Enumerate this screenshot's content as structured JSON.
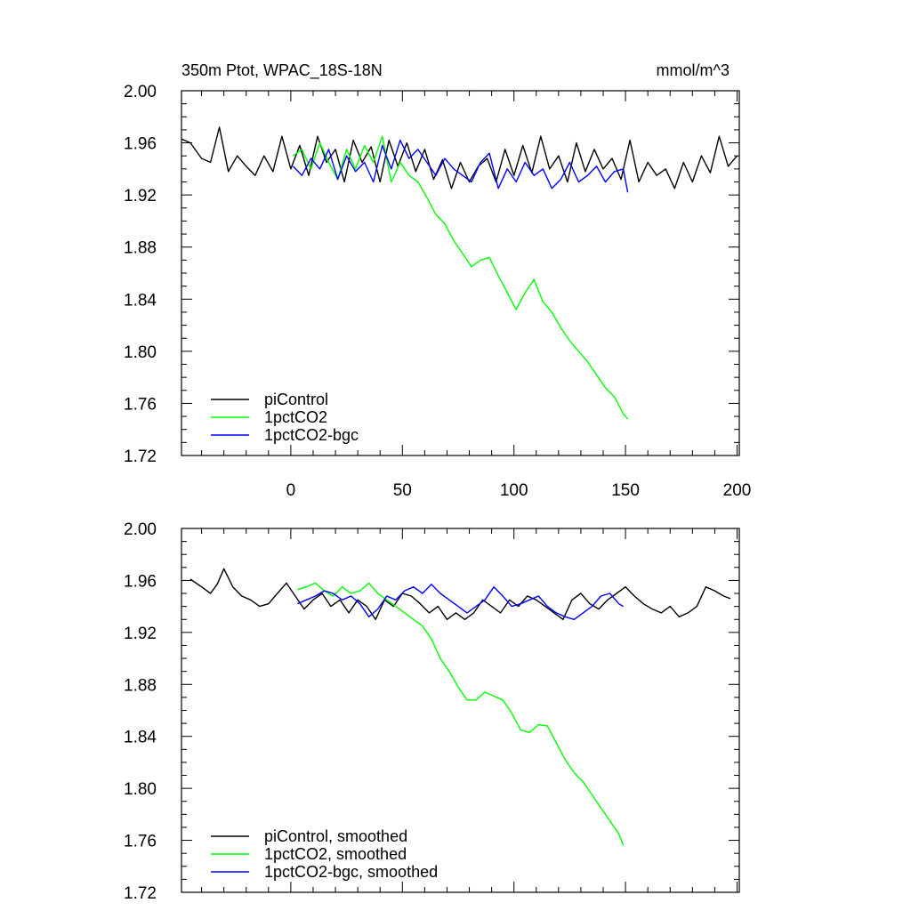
{
  "header": {
    "title": "350m Ptot, WPAC_18S-18N",
    "units": "mmol/m^3"
  },
  "colors": {
    "piControl": "#000000",
    "1pctCO2": "#00ff00",
    "1pctCO2-bgc": "#0000ff"
  },
  "chart_data": [
    {
      "type": "line",
      "title": "350m Ptot, WPAC_18S-18N",
      "units": "mmol/m^3",
      "xlim": [
        -49,
        201
      ],
      "ylim": [
        1.72,
        2.0
      ],
      "xticks": [
        0,
        50,
        100,
        150,
        200
      ],
      "xtick_labels": [
        "0",
        "50",
        "100",
        "150",
        "200"
      ],
      "yticks": [
        1.72,
        1.76,
        1.8,
        1.84,
        1.88,
        1.92,
        1.96,
        2.0
      ],
      "ytick_labels": [
        "1.72",
        "1.76",
        "1.80",
        "1.84",
        "1.88",
        "1.92",
        "1.96",
        "2.00"
      ],
      "grid": false,
      "legend_position": "bottom-left",
      "series": [
        {
          "name": "piControl",
          "color": "#000000",
          "x": [
            -49,
            -45,
            -40,
            -36,
            -32,
            -28,
            -24,
            -20,
            -16,
            -12,
            -8,
            -4,
            0,
            4,
            8,
            12,
            16,
            20,
            24,
            28,
            32,
            36,
            40,
            44,
            48,
            52,
            56,
            60,
            64,
            68,
            72,
            76,
            80,
            84,
            88,
            92,
            96,
            100,
            104,
            108,
            112,
            116,
            120,
            124,
            128,
            132,
            136,
            140,
            144,
            148,
            152,
            156,
            160,
            164,
            168,
            172,
            176,
            180,
            184,
            188,
            192,
            196,
            200
          ],
          "y": [
            1.963,
            1.96,
            1.948,
            1.945,
            1.972,
            1.938,
            1.95,
            1.942,
            1.935,
            1.95,
            1.938,
            1.965,
            1.94,
            1.958,
            1.935,
            1.965,
            1.945,
            1.955,
            1.93,
            1.962,
            1.945,
            1.957,
            1.93,
            1.962,
            1.942,
            1.96,
            1.938,
            1.955,
            1.932,
            1.947,
            1.925,
            1.945,
            1.93,
            1.942,
            1.948,
            1.93,
            1.955,
            1.935,
            1.958,
            1.937,
            1.965,
            1.94,
            1.95,
            1.93,
            1.96,
            1.938,
            1.955,
            1.94,
            1.948,
            1.932,
            1.962,
            1.93,
            1.945,
            1.935,
            1.94,
            1.925,
            1.945,
            1.93,
            1.95,
            1.937,
            1.965,
            1.942,
            1.95
          ]
        },
        {
          "name": "1pctCO2",
          "color": "#00ff00",
          "x": [
            1,
            5,
            9,
            13,
            17,
            21,
            25,
            29,
            33,
            37,
            41,
            45,
            49,
            53,
            57,
            61,
            65,
            69,
            73,
            77,
            81,
            85,
            89,
            93,
            97,
            101,
            105,
            109,
            113,
            117,
            121,
            125,
            129,
            133,
            137,
            141,
            145,
            149,
            151
          ],
          "y": [
            1.95,
            1.955,
            1.94,
            1.96,
            1.945,
            1.932,
            1.955,
            1.94,
            1.958,
            1.945,
            1.965,
            1.93,
            1.945,
            1.935,
            1.93,
            1.918,
            1.905,
            1.898,
            1.885,
            1.875,
            1.865,
            1.87,
            1.872,
            1.858,
            1.845,
            1.832,
            1.845,
            1.855,
            1.838,
            1.83,
            1.818,
            1.808,
            1.8,
            1.792,
            1.782,
            1.772,
            1.765,
            1.752,
            1.748
          ]
        },
        {
          "name": "1pctCO2-bgc",
          "color": "#0000ff",
          "x": [
            1,
            5,
            9,
            13,
            17,
            21,
            25,
            29,
            33,
            37,
            41,
            45,
            49,
            53,
            57,
            61,
            65,
            69,
            73,
            77,
            81,
            85,
            89,
            93,
            97,
            101,
            105,
            109,
            113,
            117,
            121,
            125,
            129,
            133,
            137,
            141,
            145,
            149,
            151
          ],
          "y": [
            1.942,
            1.935,
            1.948,
            1.94,
            1.955,
            1.932,
            1.95,
            1.938,
            1.945,
            1.93,
            1.958,
            1.94,
            1.962,
            1.948,
            1.955,
            1.945,
            1.935,
            1.948,
            1.94,
            1.935,
            1.93,
            1.945,
            1.952,
            1.925,
            1.94,
            1.93,
            1.945,
            1.935,
            1.94,
            1.925,
            1.932,
            1.945,
            1.93,
            1.935,
            1.942,
            1.93,
            1.938,
            1.94,
            1.922
          ]
        }
      ]
    },
    {
      "type": "line",
      "xlim": [
        -49,
        201
      ],
      "ylim": [
        1.72,
        2.0
      ],
      "yticks": [
        1.72,
        1.76,
        1.8,
        1.84,
        1.88,
        1.92,
        1.96,
        2.0
      ],
      "ytick_labels": [
        "1.72",
        "1.76",
        "1.80",
        "1.84",
        "1.88",
        "1.92",
        "1.96",
        "2.00"
      ],
      "grid": false,
      "legend_position": "bottom-left",
      "series": [
        {
          "name": "piControl, smoothed",
          "color": "#000000",
          "x": [
            -45,
            -40,
            -36,
            -33,
            -30,
            -26,
            -22,
            -18,
            -14,
            -10,
            -6,
            -2,
            2,
            6,
            10,
            14,
            18,
            22,
            26,
            30,
            34,
            38,
            42,
            46,
            50,
            54,
            58,
            62,
            66,
            70,
            74,
            78,
            82,
            86,
            90,
            94,
            98,
            102,
            106,
            110,
            114,
            118,
            122,
            126,
            130,
            134,
            138,
            142,
            146,
            150,
            154,
            158,
            162,
            166,
            170,
            174,
            178,
            182,
            186,
            190,
            194,
            197
          ],
          "y": [
            1.961,
            1.955,
            1.95,
            1.957,
            1.969,
            1.955,
            1.948,
            1.945,
            1.94,
            1.942,
            1.95,
            1.958,
            1.948,
            1.938,
            1.945,
            1.95,
            1.94,
            1.945,
            1.935,
            1.945,
            1.94,
            1.93,
            1.945,
            1.94,
            1.95,
            1.948,
            1.942,
            1.935,
            1.94,
            1.93,
            1.935,
            1.93,
            1.935,
            1.945,
            1.94,
            1.935,
            1.945,
            1.94,
            1.948,
            1.945,
            1.94,
            1.935,
            1.93,
            1.945,
            1.95,
            1.942,
            1.938,
            1.945,
            1.95,
            1.955,
            1.948,
            1.942,
            1.938,
            1.935,
            1.94,
            1.932,
            1.935,
            1.94,
            1.955,
            1.952,
            1.948,
            1.946
          ]
        },
        {
          "name": "1pctCO2, smoothed",
          "color": "#00ff00",
          "x": [
            3,
            7,
            11,
            15,
            19,
            23,
            27,
            31,
            35,
            39,
            43,
            47,
            51,
            55,
            59,
            63,
            67,
            71,
            75,
            79,
            83,
            87,
            91,
            95,
            99,
            103,
            107,
            111,
            115,
            119,
            123,
            127,
            131,
            135,
            139,
            143,
            147,
            149
          ],
          "y": [
            1.953,
            1.955,
            1.958,
            1.952,
            1.948,
            1.955,
            1.95,
            1.952,
            1.958,
            1.95,
            1.945,
            1.94,
            1.935,
            1.93,
            1.925,
            1.915,
            1.9,
            1.89,
            1.878,
            1.868,
            1.868,
            1.874,
            1.871,
            1.868,
            1.858,
            1.845,
            1.843,
            1.849,
            1.848,
            1.835,
            1.822,
            1.812,
            1.805,
            1.795,
            1.785,
            1.775,
            1.765,
            1.756
          ]
        },
        {
          "name": "1pctCO2-bgc, smoothed",
          "color": "#0000ff",
          "x": [
            3,
            7,
            11,
            15,
            19,
            23,
            27,
            31,
            35,
            39,
            43,
            47,
            51,
            55,
            59,
            63,
            67,
            71,
            75,
            79,
            83,
            87,
            91,
            95,
            99,
            103,
            107,
            111,
            115,
            119,
            123,
            127,
            131,
            135,
            139,
            143,
            147,
            149
          ],
          "y": [
            1.942,
            1.945,
            1.948,
            1.952,
            1.95,
            1.945,
            1.948,
            1.942,
            1.932,
            1.938,
            1.948,
            1.945,
            1.952,
            1.955,
            1.95,
            1.957,
            1.95,
            1.945,
            1.94,
            1.935,
            1.94,
            1.945,
            1.955,
            1.948,
            1.94,
            1.942,
            1.945,
            1.948,
            1.94,
            1.935,
            1.932,
            1.93,
            1.935,
            1.94,
            1.948,
            1.95,
            1.942,
            1.94
          ]
        }
      ]
    }
  ]
}
